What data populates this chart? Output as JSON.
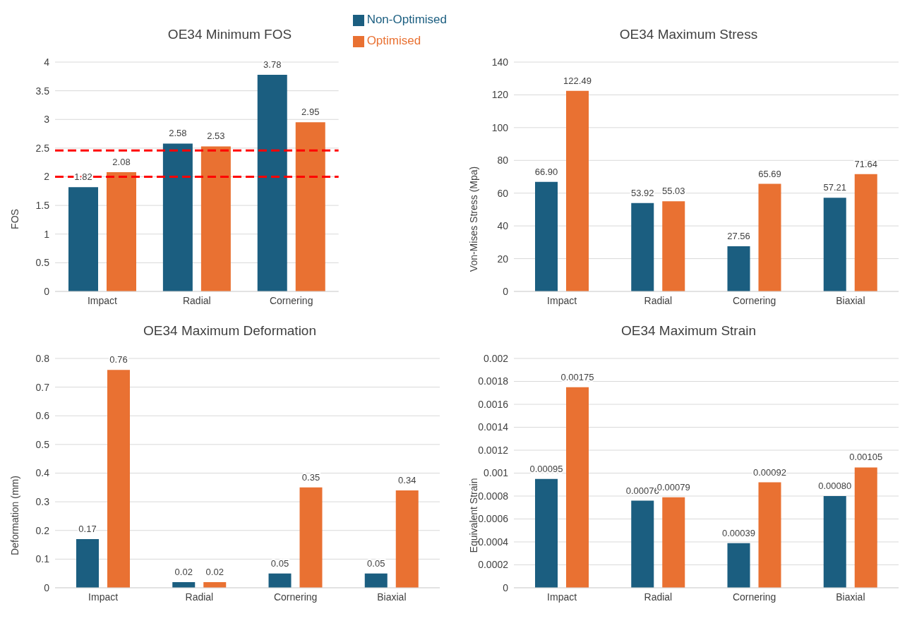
{
  "chart_data": [
    {
      "type": "bar",
      "title": "OE34 Minimum FOS",
      "ylabel": "FOS",
      "categories": [
        "Impact",
        "Radial",
        "Cornering"
      ],
      "series": [
        {
          "name": "Non-Optimised",
          "color": "#1b5e80",
          "values": [
            1.82,
            2.58,
            3.78
          ],
          "value_labels": [
            "1.82",
            "2.58",
            "3.78"
          ]
        },
        {
          "name": "Optimised",
          "color": "#e97132",
          "values": [
            2.08,
            2.53,
            2.95
          ],
          "value_labels": [
            "2.08",
            "2.53",
            "2.95"
          ]
        }
      ],
      "ref_lines": [
        {
          "axis": "y",
          "value": 2.46,
          "color": "#ff0000",
          "line_style": "dashed"
        },
        {
          "axis": "y",
          "value": 2.0,
          "color": "#ff0000",
          "line_style": "dashed"
        }
      ],
      "ylim": [
        0,
        4
      ],
      "yticks": [
        0,
        0.5,
        1,
        1.5,
        2,
        2.5,
        3,
        3.5,
        4
      ],
      "grid": "y",
      "legend": "top right"
    },
    {
      "type": "bar",
      "title": "OE34 Maximum Stress",
      "ylabel": "Von-Mises Stress (Mpa)",
      "categories": [
        "Impact",
        "Radial",
        "Cornering",
        "Biaxial"
      ],
      "series": [
        {
          "color": "#1b5e80",
          "values": [
            66.9,
            53.92,
            27.56,
            57.21
          ],
          "value_labels": [
            "66.90",
            "53.92",
            "27.56",
            "57.21"
          ]
        },
        {
          "color": "#e97132",
          "values": [
            122.49,
            55.03,
            65.69,
            71.64
          ],
          "value_labels": [
            "122.49",
            "55.03",
            "65.69",
            "71.64"
          ]
        }
      ],
      "ylim": [
        0,
        140
      ],
      "yticks": [
        0,
        20,
        40,
        60,
        80,
        100,
        120,
        140
      ],
      "grid": "y",
      "legend": false
    },
    {
      "type": "bar",
      "title": "OE34 Maximum Deformation",
      "ylabel": "Deformation (mm)",
      "categories": [
        "Impact",
        "Radial",
        "Cornering",
        "Biaxial"
      ],
      "series": [
        {
          "color": "#1b5e80",
          "values": [
            0.17,
            0.02,
            0.05,
            0.05
          ],
          "value_labels": [
            "0.17",
            "0.02",
            "0.05",
            "0.05"
          ]
        },
        {
          "color": "#e97132",
          "values": [
            0.76,
            0.02,
            0.35,
            0.34
          ],
          "value_labels": [
            "0.76",
            "0.02",
            "0.35",
            "0.34"
          ]
        }
      ],
      "ylim": [
        0,
        0.8
      ],
      "yticks": [
        0,
        0.1,
        0.2,
        0.3,
        0.4,
        0.5,
        0.6,
        0.7,
        0.8
      ],
      "grid": "y",
      "legend": false
    },
    {
      "type": "bar",
      "title": "OE34 Maximum Strain",
      "ylabel": "Equivalent Strain",
      "categories": [
        "Impact",
        "Radial",
        "Cornering",
        "Biaxial"
      ],
      "series": [
        {
          "color": "#1b5e80",
          "values": [
            0.00095,
            0.00076,
            0.00039,
            0.0008
          ],
          "value_labels": [
            "0.00095",
            "0.00076",
            "0.00039",
            "0.00080"
          ]
        },
        {
          "color": "#e97132",
          "values": [
            0.00175,
            0.00079,
            0.00092,
            0.00105
          ],
          "value_labels": [
            "0.00175",
            "0.00079",
            "0.00092",
            "0.00105"
          ]
        }
      ],
      "ylim": [
        0,
        0.002
      ],
      "yticks": [
        0,
        0.0002,
        0.0004,
        0.0006,
        0.0008,
        0.001,
        0.0012,
        0.0014,
        0.0016,
        0.0018,
        0.002
      ],
      "grid": "y",
      "legend": false
    }
  ]
}
